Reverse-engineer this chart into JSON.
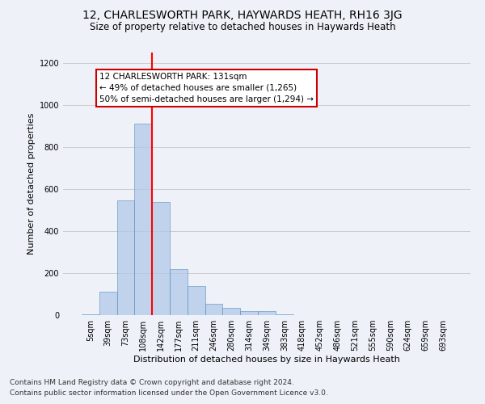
{
  "title": "12, CHARLESWORTH PARK, HAYWARDS HEATH, RH16 3JG",
  "subtitle": "Size of property relative to detached houses in Haywards Heath",
  "xlabel": "Distribution of detached houses by size in Haywards Heath",
  "ylabel": "Number of detached properties",
  "categories": [
    "5sqm",
    "39sqm",
    "73sqm",
    "108sqm",
    "142sqm",
    "177sqm",
    "211sqm",
    "246sqm",
    "280sqm",
    "314sqm",
    "349sqm",
    "383sqm",
    "418sqm",
    "452sqm",
    "486sqm",
    "521sqm",
    "555sqm",
    "590sqm",
    "624sqm",
    "659sqm",
    "693sqm"
  ],
  "bar_heights": [
    5,
    110,
    545,
    910,
    540,
    220,
    140,
    55,
    33,
    18,
    18,
    5,
    0,
    0,
    0,
    0,
    0,
    0,
    0,
    0,
    0
  ],
  "bar_color": "#aec6e8",
  "bar_edge_color": "#5a8fc2",
  "bar_alpha": 0.7,
  "red_line_index": 4,
  "annotation_text": "12 CHARLESWORTH PARK: 131sqm\n← 49% of detached houses are smaller (1,265)\n50% of semi-detached houses are larger (1,294) →",
  "annotation_box_color": "#ffffff",
  "annotation_box_edge_color": "#cc0000",
  "ylim": [
    0,
    1250
  ],
  "yticks": [
    0,
    200,
    400,
    600,
    800,
    1000,
    1200
  ],
  "grid_color": "#cccccc",
  "background_color": "#eef2f8",
  "footer_line1": "Contains HM Land Registry data © Crown copyright and database right 2024.",
  "footer_line2": "Contains public sector information licensed under the Open Government Licence v3.0.",
  "title_fontsize": 10,
  "subtitle_fontsize": 8.5,
  "xlabel_fontsize": 8,
  "ylabel_fontsize": 8,
  "tick_fontsize": 7,
  "annotation_fontsize": 7.5,
  "footer_fontsize": 6.5
}
